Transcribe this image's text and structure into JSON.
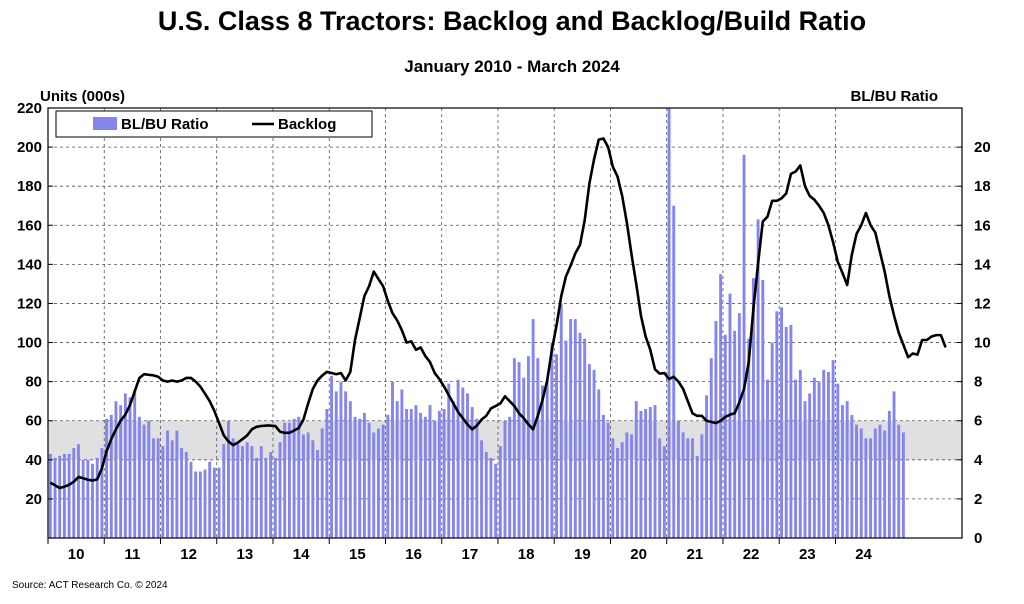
{
  "colors": {
    "bars": "#8585ee",
    "line": "#000000",
    "band": "#e0e0e0",
    "grid": "#555555"
  },
  "chart_data": {
    "type": "bar+line",
    "title": "U.S. Class 8 Tractors: Backlog and Backlog/Build Ratio",
    "subtitle": "January 2010 - March 2024",
    "source": "Source: ACT Research Co. © 2024",
    "left_axis": {
      "label": "Units (000s)",
      "range": [
        0,
        220
      ],
      "ticks": [
        20,
        40,
        60,
        80,
        100,
        120,
        140,
        160,
        180,
        200,
        220
      ]
    },
    "right_axis": {
      "label": "BL/BU Ratio",
      "range": [
        0,
        22
      ],
      "ticks": [
        0,
        2,
        4,
        6,
        8,
        10,
        12,
        14,
        16,
        18,
        20
      ]
    },
    "x_axis": {
      "tick_labels": [
        "10",
        "11",
        "12",
        "13",
        "14",
        "15",
        "16",
        "17",
        "18",
        "19",
        "20",
        "21",
        "22",
        "23",
        "24"
      ]
    },
    "band": {
      "axis": "right",
      "from": 4,
      "to": 6
    },
    "legend": {
      "position": "top-left",
      "entries": [
        "BL/BU Ratio",
        "Backlog"
      ]
    },
    "grid": {
      "horizontal": "dashed",
      "vertical": "dashed-at-year-boundaries"
    },
    "series": [
      {
        "name": "BL/BU Ratio",
        "type": "bar",
        "axis": "right",
        "values": [
          4.3,
          4.1,
          4.2,
          4.3,
          4.3,
          4.6,
          4.8,
          4.0,
          4.0,
          3.8,
          4.1,
          4.6,
          6.1,
          6.3,
          7.0,
          6.8,
          7.4,
          7.2,
          7.6,
          6.2,
          5.8,
          6.0,
          5.1,
          5.1,
          4.7,
          5.5,
          5.0,
          5.5,
          4.6,
          4.4,
          3.9,
          3.4,
          3.4,
          3.5,
          3.9,
          3.6,
          3.6,
          4.8,
          6.0,
          5.1,
          4.8,
          4.7,
          4.9,
          4.7,
          4.1,
          4.7,
          4.1,
          4.4,
          4.1,
          4.9,
          5.9,
          5.9,
          6.1,
          6.2,
          5.3,
          5.4,
          5.0,
          4.5,
          5.6,
          6.6,
          8.3,
          7.5,
          8.0,
          7.5,
          7.0,
          6.2,
          6.1,
          6.4,
          5.9,
          5.4,
          5.6,
          5.8,
          6.3,
          8.0,
          7.0,
          7.6,
          6.6,
          6.6,
          6.8,
          6.4,
          6.2,
          6.8,
          6.0,
          6.5,
          6.6,
          7.9,
          7.0,
          8.1,
          7.7,
          7.4,
          6.7,
          6.1,
          5.0,
          4.4,
          4.1,
          3.8,
          4.7,
          6.0,
          6.2,
          9.2,
          9.0,
          8.2,
          9.3,
          11.2,
          9.2,
          7.8,
          8.0,
          10.0,
          9.4,
          12.0,
          10.1,
          11.2,
          11.2,
          10.5,
          10.2,
          8.9,
          8.6,
          7.6,
          6.3,
          5.9,
          5.1,
          4.6,
          4.9,
          5.4,
          5.3,
          7.0,
          6.5,
          6.6,
          6.7,
          6.8,
          5.1,
          4.7,
          22.0,
          17.0,
          6.0,
          5.4,
          5.1,
          5.1,
          4.2,
          5.3,
          7.3,
          9.2,
          11.1,
          13.5,
          10.4,
          12.5,
          10.6,
          11.5,
          19.6,
          10.2,
          13.3,
          16.3,
          13.2,
          8.1,
          10.0,
          11.6,
          11.8,
          10.8,
          10.9,
          8.1,
          8.6,
          7.0,
          7.4,
          8.2,
          8.0,
          8.6,
          8.5,
          9.1,
          7.9,
          6.8,
          7.0,
          6.3,
          5.8,
          5.6,
          5.1,
          5.1,
          5.6,
          5.8,
          5.5,
          6.5,
          7.5,
          5.8,
          5.4
        ]
      },
      {
        "name": "Backlog",
        "type": "line",
        "axis": "left",
        "values": [
          28.3,
          27.0,
          25.6,
          26.3,
          27.2,
          28.8,
          31.2,
          30.6,
          29.8,
          29.4,
          30.0,
          35.6,
          44.4,
          50.6,
          55.6,
          60.0,
          63.1,
          68.1,
          75.0,
          81.9,
          83.8,
          83.5,
          83.2,
          82.5,
          80.6,
          80.0,
          80.6,
          80.0,
          80.6,
          81.9,
          81.9,
          80.0,
          77.5,
          73.8,
          70.0,
          65.0,
          58.8,
          52.5,
          49.4,
          47.5,
          48.8,
          50.6,
          52.5,
          55.6,
          56.9,
          57.3,
          57.5,
          57.5,
          57.3,
          54.4,
          53.8,
          53.8,
          55.0,
          56.3,
          60.6,
          68.8,
          76.3,
          80.6,
          83.1,
          85.0,
          84.4,
          83.8,
          84.4,
          80.6,
          85.0,
          101.3,
          112.5,
          123.8,
          128.8,
          136.3,
          132.5,
          128.8,
          121.3,
          115.0,
          111.3,
          106.3,
          100.0,
          100.6,
          96.3,
          97.5,
          93.1,
          90.0,
          84.4,
          81.3,
          77.5,
          73.1,
          68.8,
          64.4,
          61.3,
          58.1,
          55.6,
          57.5,
          60.6,
          62.5,
          66.3,
          67.5,
          68.8,
          72.5,
          70.0,
          67.5,
          63.8,
          61.3,
          58.1,
          55.6,
          62.5,
          70.6,
          80.6,
          96.3,
          108.8,
          123.8,
          133.8,
          139.4,
          145.6,
          150.0,
          162.5,
          181.3,
          193.8,
          203.8,
          204.4,
          200.0,
          190.0,
          185.0,
          175.0,
          161.3,
          145.0,
          130.0,
          113.8,
          103.1,
          96.3,
          86.3,
          84.1,
          84.4,
          81.3,
          82.5,
          80.0,
          76.3,
          70.0,
          63.8,
          62.5,
          62.5,
          60.0,
          59.4,
          58.8,
          60.0,
          61.9,
          63.1,
          63.8,
          69.4,
          76.3,
          90.0,
          117.5,
          140.6,
          161.9,
          164.4,
          172.5,
          172.5,
          173.8,
          176.3,
          186.3,
          187.5,
          190.6,
          180.0,
          175.0,
          173.1,
          170.0,
          166.3,
          160.0,
          151.3,
          141.3,
          135.6,
          129.4,
          145.0,
          155.6,
          160.0,
          166.3,
          160.0,
          156.3,
          146.3,
          136.3,
          123.8,
          113.8,
          105.0,
          98.8,
          92.5,
          94.4,
          93.8,
          101.3,
          101.3,
          103.1,
          103.8,
          103.8,
          97.5
        ]
      }
    ]
  }
}
